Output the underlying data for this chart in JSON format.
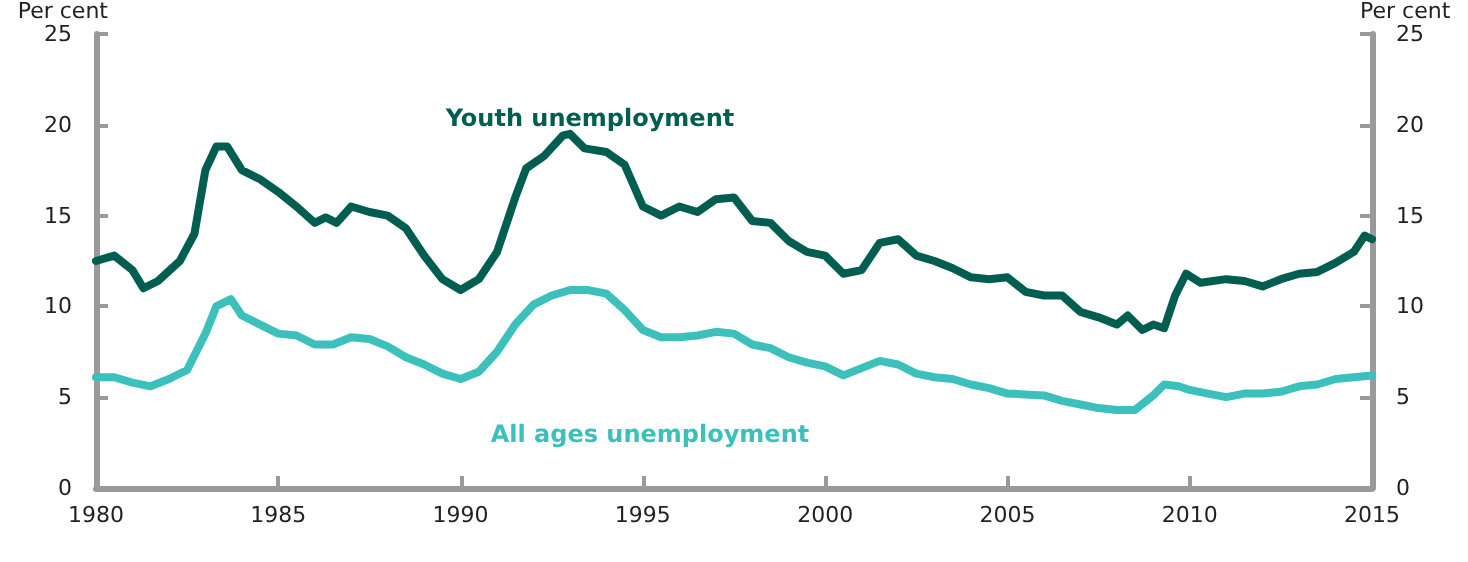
{
  "chart_data": {
    "type": "line",
    "ylabel": "Per cent",
    "y2label": "Per cent",
    "xlim": [
      1980,
      2015
    ],
    "xticks": [
      1980,
      1985,
      1990,
      1995,
      2000,
      2005,
      2010,
      2015
    ],
    "ylim": [
      0,
      25
    ],
    "yticks": [
      0,
      5,
      10,
      15,
      20,
      25
    ],
    "y2lim": [
      0,
      25
    ],
    "y2ticks": [
      0,
      5,
      10,
      15,
      20,
      25
    ],
    "grid": false,
    "legend": false,
    "marker": "none",
    "line_style": "solid",
    "series": [
      {
        "name": "Youth unemployment",
        "color": "#005e50",
        "x": [
          1980,
          1980.5,
          1981,
          1981.3,
          1981.7,
          1982.3,
          1982.7,
          1983,
          1983.3,
          1983.6,
          1984,
          1984.5,
          1985,
          1985.5,
          1986,
          1986.3,
          1986.6,
          1987,
          1987.5,
          1988,
          1988.5,
          1989,
          1989.5,
          1990,
          1990.5,
          1991,
          1991.5,
          1991.8,
          1992.3,
          1992.8,
          1993,
          1993.4,
          1994,
          1994.5,
          1995,
          1995.5,
          1996,
          1996.5,
          1997,
          1997.5,
          1998,
          1998.5,
          1999,
          1999.5,
          2000,
          2000.5,
          2001,
          2001.5,
          2002,
          2002.5,
          2003,
          2003.5,
          2004,
          2004.5,
          2005,
          2005.5,
          2006,
          2006.5,
          2007,
          2007.5,
          2008,
          2008.3,
          2008.7,
          2009,
          2009.3,
          2009.6,
          2009.9,
          2010.3,
          2011,
          2011.5,
          2012,
          2012.5,
          2013,
          2013.5,
          2014,
          2014.5,
          2014.8,
          2015
        ],
        "values": [
          12.5,
          12.8,
          12,
          11,
          11.4,
          12.5,
          14,
          17.5,
          18.8,
          18.8,
          17.5,
          17,
          16.3,
          15.5,
          14.6,
          14.9,
          14.6,
          15.5,
          15.2,
          15,
          14.3,
          12.8,
          11.5,
          10.9,
          11.5,
          13,
          16,
          17.6,
          18.3,
          19.4,
          19.5,
          18.7,
          18.5,
          17.8,
          15.5,
          15,
          15.5,
          15.2,
          15.9,
          16,
          14.7,
          14.6,
          13.6,
          13,
          12.8,
          11.8,
          12,
          13.5,
          13.7,
          12.8,
          12.5,
          12.1,
          11.6,
          11.5,
          11.6,
          10.8,
          10.6,
          10.6,
          9.7,
          9.4,
          9,
          9.5,
          8.7,
          9,
          8.8,
          10.6,
          11.8,
          11.3,
          11.5,
          11.4,
          11.1,
          11.5,
          11.8,
          11.9,
          12.4,
          13,
          13.9,
          13.7
        ]
      },
      {
        "name": "All ages unemployment",
        "color": "#3cc0bc",
        "x": [
          1980,
          1980.5,
          1981,
          1981.5,
          1982,
          1982.5,
          1983,
          1983.3,
          1983.7,
          1984,
          1984.5,
          1985,
          1985.5,
          1986,
          1986.5,
          1987,
          1987.5,
          1988,
          1988.5,
          1989,
          1989.5,
          1990,
          1990.5,
          1991,
          1991.5,
          1992,
          1992.5,
          1993,
          1993.5,
          1994,
          1994.5,
          1995,
          1995.5,
          1996,
          1996.5,
          1997,
          1997.5,
          1998,
          1998.5,
          1999,
          1999.5,
          2000,
          2000.5,
          2001,
          2001.5,
          2002,
          2002.5,
          2003,
          2003.5,
          2004,
          2004.5,
          2005,
          2006,
          2006.5,
          2007,
          2007.5,
          2008,
          2008.5,
          2009,
          2009.3,
          2009.7,
          2010,
          2010.5,
          2011,
          2011.5,
          2012,
          2012.5,
          2013,
          2013.5,
          2014,
          2014.5,
          2015
        ],
        "values": [
          6.1,
          6.1,
          5.8,
          5.6,
          6,
          6.5,
          8.5,
          10,
          10.4,
          9.5,
          9,
          8.5,
          8.4,
          7.9,
          7.9,
          8.3,
          8.2,
          7.8,
          7.2,
          6.8,
          6.3,
          6,
          6.4,
          7.5,
          9,
          10.1,
          10.6,
          10.9,
          10.9,
          10.7,
          9.8,
          8.7,
          8.3,
          8.3,
          8.4,
          8.6,
          8.5,
          7.9,
          7.7,
          7.2,
          6.9,
          6.7,
          6.2,
          6.6,
          7,
          6.8,
          6.3,
          6.1,
          6,
          5.7,
          5.5,
          5.2,
          5.1,
          4.8,
          4.6,
          4.4,
          4.3,
          4.3,
          5.1,
          5.7,
          5.6,
          5.4,
          5.2,
          5,
          5.2,
          5.2,
          5.3,
          5.6,
          5.7,
          6,
          6.1,
          6.2
        ]
      }
    ]
  }
}
